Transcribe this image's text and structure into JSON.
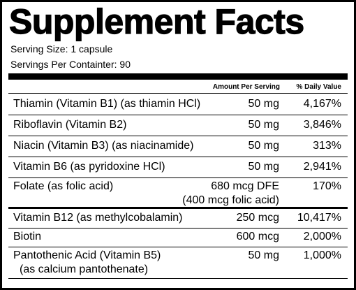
{
  "title": "Supplement Facts",
  "serving_size": "Serving Size: 1 capsule",
  "servings_per_container": "Servings Per Containter: 90",
  "header": {
    "amount": "Amount Per Serving",
    "daily_value": "% Daily Value"
  },
  "nutrients": [
    {
      "name": "Thiamin (Vitamin B1) (as thiamin HCl)",
      "name_sub": "",
      "amount": "50 mg",
      "amount_sub": "",
      "dv": "4,167%"
    },
    {
      "name": "Riboflavin (Vitamin B2)",
      "name_sub": "",
      "amount": "50 mg",
      "amount_sub": "",
      "dv": "3,846%"
    },
    {
      "name": "Niacin (Vitamin B3) (as niacinamide)",
      "name_sub": "",
      "amount": "50 mg",
      "amount_sub": "",
      "dv": "313%"
    },
    {
      "name": "Vitamin B6 (as pyridoxine HCl)",
      "name_sub": "",
      "amount": "50 mg",
      "amount_sub": "",
      "dv": "2,941%"
    },
    {
      "name": "Folate (as folic acid)",
      "name_sub": "",
      "amount": "680 mcg DFE",
      "amount_sub": "(400 mcg folic acid)",
      "dv": "170%"
    },
    {
      "name": "Vitamin B12 (as methylcobalamin)",
      "name_sub": "",
      "amount": "250 mcg",
      "amount_sub": "",
      "dv": "10,417%"
    },
    {
      "name": "Biotin",
      "name_sub": "",
      "amount": "600 mcg",
      "amount_sub": "",
      "dv": "2,000%"
    },
    {
      "name": "Pantothenic Acid (Vitamin B5)",
      "name_sub": "(as calcium pantothenate)",
      "amount": "50 mg",
      "amount_sub": "",
      "dv": "1,000%"
    }
  ]
}
